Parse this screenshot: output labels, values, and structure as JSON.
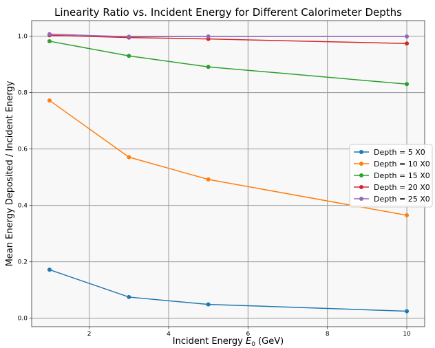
{
  "chart_data": {
    "type": "line",
    "title": "Linearity Ratio vs. Incident Energy for Different Calorimeter Depths",
    "xlabel_main": "Incident Energy ",
    "xlabel_var": "E",
    "xlabel_sub": "0",
    "xlabel_unit": " (GeV)",
    "ylabel": "Mean Energy Deposited / Incident Energy",
    "xlim": [
      0.55,
      10.45
    ],
    "ylim": [
      -0.03,
      1.055
    ],
    "xticks": [
      2,
      4,
      6,
      8,
      10
    ],
    "yticks": [
      0.0,
      0.2,
      0.4,
      0.6,
      0.8,
      1.0
    ],
    "xtick_labels": [
      "2",
      "4",
      "6",
      "8",
      "10"
    ],
    "ytick_labels": [
      "0.0",
      "0.2",
      "0.4",
      "0.6",
      "0.8",
      "1.0"
    ],
    "grid": true,
    "legend_position": "right",
    "x": [
      1,
      3,
      5,
      10
    ],
    "series": [
      {
        "name": "Depth = 5 X0",
        "color": "#1f77b4",
        "values": [
          0.172,
          0.075,
          0.049,
          0.025
        ]
      },
      {
        "name": "Depth = 10 X0",
        "color": "#ff7f0e",
        "values": [
          0.772,
          0.571,
          0.492,
          0.365
        ]
      },
      {
        "name": "Depth = 15 X0",
        "color": "#2ca02c",
        "values": [
          0.982,
          0.93,
          0.891,
          0.83
        ]
      },
      {
        "name": "Depth = 20 X0",
        "color": "#d62728",
        "values": [
          1.003,
          0.995,
          0.99,
          0.974
        ]
      },
      {
        "name": "Depth = 25 X0",
        "color": "#9467bd",
        "values": [
          1.007,
          0.998,
          0.999,
          0.999
        ]
      }
    ]
  }
}
